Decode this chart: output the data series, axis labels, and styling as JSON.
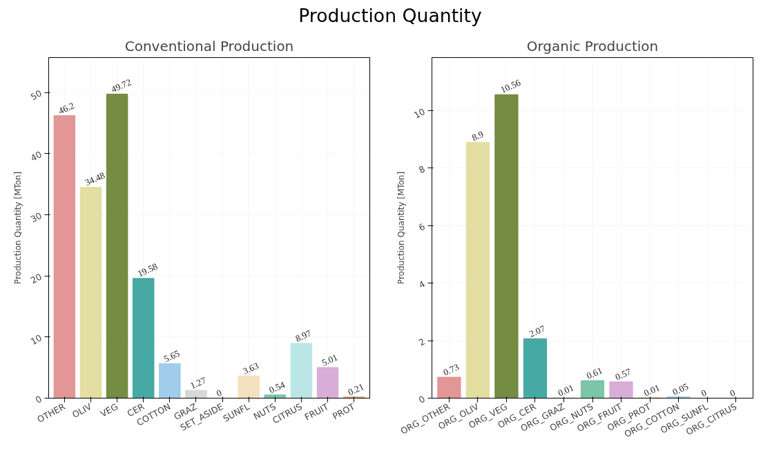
{
  "chart_data": [
    {
      "type": "bar",
      "title": "Conventional Production",
      "ylabel": "Production Quantity [MTon]",
      "annotations": [
        "Production Quantity"
      ],
      "categories": [
        "OTHER",
        "OLIV",
        "VEG",
        "CER",
        "COTTON",
        "GRAZ",
        "SET_ASIDE",
        "SUNFL",
        "NUTS",
        "CITRUS",
        "FRUIT",
        "PROT"
      ],
      "values": [
        46.2,
        34.48,
        49.72,
        19.58,
        5.65,
        1.27,
        0,
        3.63,
        0.54,
        8.97,
        5.01,
        0.21
      ],
      "colors": [
        "#e08b8b",
        "#e0da98",
        "#667f2f",
        "#33a099",
        "#96c8ea",
        "#d3d3d3",
        "#cccccc",
        "#f5deb8",
        "#70bea0",
        "#b4e3e3",
        "#d4a5d4",
        "#e5a06a"
      ],
      "ylim": [
        0,
        55.7
      ],
      "yticks": [
        0,
        10,
        20,
        30,
        40,
        50
      ],
      "grid": true,
      "data_labels": true
    },
    {
      "type": "bar",
      "title": "Organic Production",
      "ylabel": "Production Quantity [MTon]",
      "categories": [
        "ORG_OTHER",
        "ORG_OLIV",
        "ORG_VEG",
        "ORG_CER",
        "ORG_GRAZ",
        "ORG_NUTS",
        "ORG_FRUIT",
        "ORG_PROT",
        "ORG_COTTON",
        "ORG_SUNFL",
        "ORG_CITRUS"
      ],
      "values": [
        0.73,
        8.9,
        10.56,
        2.07,
        0.01,
        0.61,
        0.57,
        0.01,
        0.05,
        0,
        0
      ],
      "colors": [
        "#e08b8b",
        "#e0da98",
        "#667f2f",
        "#33a099",
        "#d3d3d3",
        "#70bea0",
        "#d4a5d4",
        "#e5a06a",
        "#96c8ea",
        "#f5deb8",
        "#b4e3e3"
      ],
      "ylim": [
        0,
        11.85
      ],
      "yticks": [
        0,
        2,
        4,
        6,
        8,
        10
      ],
      "grid": true,
      "data_labels": true
    }
  ]
}
